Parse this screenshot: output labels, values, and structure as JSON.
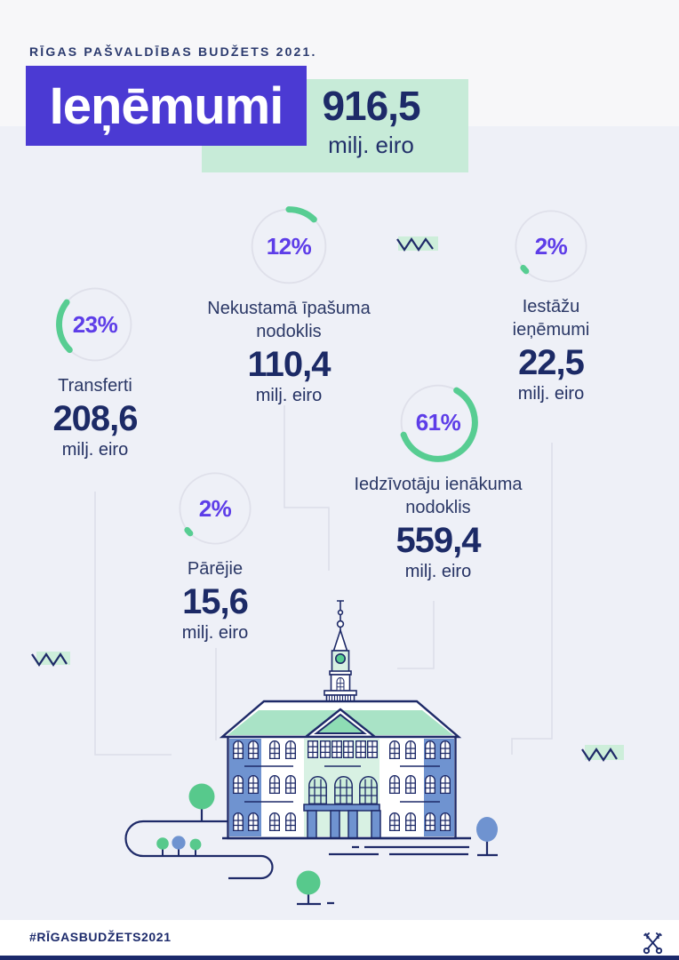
{
  "header": {
    "kicker": "RĪGAS PAŠVALDĪBAS BUDŽETS 2021.",
    "title": "Ieņēmumi",
    "total_value": "916,5",
    "total_unit": "milj. eiro"
  },
  "stats": [
    {
      "percent": "12%",
      "label": "Nekustamā īpašuma nodoklis",
      "value": "110,4",
      "unit": "milj. eiro"
    },
    {
      "percent": "2%",
      "label": "Iestāžu ieņēmumi",
      "value": "22,5",
      "unit": "milj. eiro"
    },
    {
      "percent": "23%",
      "label": "Transferti",
      "value": "208,6",
      "unit": "milj. eiro"
    },
    {
      "percent": "61%",
      "label": "Iedzīvotāju ienākuma nodoklis",
      "value": "559,4",
      "unit": "milj. eiro"
    },
    {
      "percent": "2%",
      "label": "Pārējie",
      "value": "15,6",
      "unit": "milj. eiro"
    }
  ],
  "footer": {
    "hashtag": "#RĪGASBUDŽETS2021",
    "icon": "crossed-keys"
  },
  "colors": {
    "accent_purple": "#4b3ad3",
    "percent_purple": "#5d3de8",
    "arc_green": "#57cd92",
    "mint": "#cdeeda",
    "navy": "#1e2a68",
    "building_blue": "#6f93d0",
    "background": "#eef0f7"
  },
  "chart_data": {
    "type": "pie",
    "title": "Rīgas pašvaldības budžets 2021. — Ieņēmumi",
    "total_value": 916.5,
    "total_unit": "milj. eiro",
    "categories": [
      "Iedzīvotāju ienākuma nodoklis",
      "Transferti",
      "Nekustamā īpašuma nodoklis",
      "Iestāžu ieņēmumi",
      "Pārējie"
    ],
    "percents": [
      61,
      23,
      12,
      2,
      2
    ],
    "values_milj_eiro": [
      559.4,
      208.6,
      110.4,
      22.5,
      15.6
    ],
    "legend_position": "none",
    "grid": false
  }
}
